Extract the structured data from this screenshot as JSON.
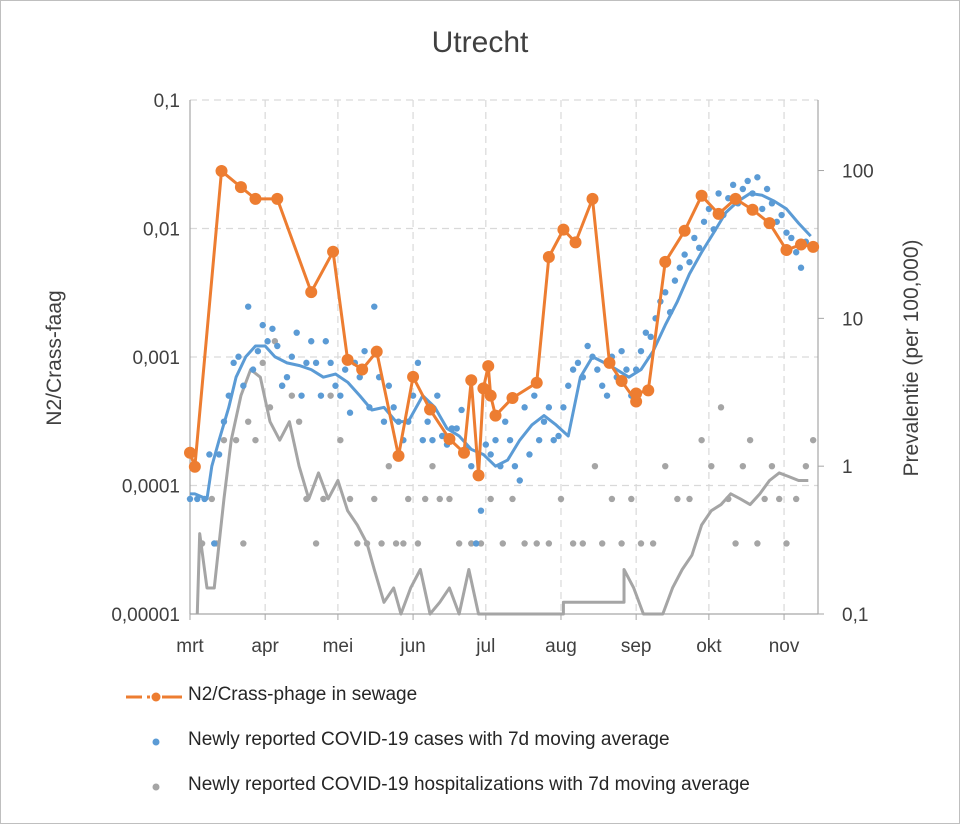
{
  "chart_data": {
    "type": "line",
    "title": "Utrecht",
    "y_left_label": "N2/Crass-faag",
    "y_right_label": "Prevalentie (per 100,000)",
    "y_left_scale": "log",
    "y_right_scale": "log",
    "y_left_range": [
      1e-05,
      0.1
    ],
    "y_right_range": [
      0.1,
      300
    ],
    "y_left_ticks": [
      "0,00001",
      "0,0001",
      "0,001",
      "0,01",
      "0,1"
    ],
    "y_right_ticks": [
      "0,1",
      "1",
      "10",
      "100"
    ],
    "x_range": [
      "2020-03-01",
      "2020-11-15"
    ],
    "x_ticks": [
      {
        "label": "mrt",
        "date": "2020-03-01"
      },
      {
        "label": "apr",
        "date": "2020-04-01"
      },
      {
        "label": "mei",
        "date": "2020-05-01"
      },
      {
        "label": "jun",
        "date": "2020-06-01"
      },
      {
        "label": "jul",
        "date": "2020-07-01"
      },
      {
        "label": "aug",
        "date": "2020-08-01"
      },
      {
        "label": "sep",
        "date": "2020-09-01"
      },
      {
        "label": "okt",
        "date": "2020-10-01"
      },
      {
        "label": "nov",
        "date": "2020-11-01"
      }
    ],
    "grid": true,
    "legend_position": "bottom",
    "colors": {
      "sewage": "#ED7D31",
      "cases": "#5B9BD5",
      "hosp": "#A5A5A5"
    },
    "series": [
      {
        "name": "N2/Crass-phage in sewage",
        "axis": "left",
        "style": "dash-dot-line-markers",
        "x": [
          "2020-03-01",
          "2020-03-03",
          "2020-03-14",
          "2020-03-22",
          "2020-03-28",
          "2020-04-06",
          "2020-04-20",
          "2020-04-29",
          "2020-05-05",
          "2020-05-11",
          "2020-05-17",
          "2020-05-26",
          "2020-06-01",
          "2020-06-08",
          "2020-06-16",
          "2020-06-22",
          "2020-06-25",
          "2020-06-28",
          "2020-06-30",
          "2020-07-02",
          "2020-07-03",
          "2020-07-05",
          "2020-07-12",
          "2020-07-22",
          "2020-07-27",
          "2020-08-02",
          "2020-08-07",
          "2020-08-14",
          "2020-08-21",
          "2020-08-26",
          "2020-09-01",
          "2020-09-01",
          "2020-09-06",
          "2020-09-13",
          "2020-09-21",
          "2020-09-28",
          "2020-10-05",
          "2020-10-12",
          "2020-10-19",
          "2020-10-26",
          "2020-11-02",
          "2020-11-08",
          "2020-11-13"
        ],
        "y": [
          0.00018,
          0.00014,
          0.028,
          0.021,
          0.017,
          0.017,
          0.0032,
          0.0066,
          0.00095,
          0.0008,
          0.0011,
          0.00017,
          0.0007,
          0.00039,
          0.00023,
          0.00018,
          0.00066,
          0.00012,
          0.00057,
          0.00085,
          0.0005,
          0.00035,
          0.00048,
          0.00063,
          0.006,
          0.0098,
          0.0078,
          0.017,
          0.0009,
          0.00065,
          0.00045,
          0.00052,
          0.00055,
          0.0055,
          0.0096,
          0.018,
          0.013,
          0.017,
          0.014,
          0.011,
          0.0068,
          0.0075,
          0.0072
        ]
      },
      {
        "name": "Newly reported COVID-19 cases with 7d moving average",
        "axis": "right",
        "style": "points-and-line",
        "line_x": [
          "2020-03-01",
          "2020-03-03",
          "2020-03-08",
          "2020-03-10",
          "2020-03-13",
          "2020-03-17",
          "2020-03-20",
          "2020-03-24",
          "2020-03-28",
          "2020-04-01",
          "2020-04-05",
          "2020-04-10",
          "2020-04-15",
          "2020-04-20",
          "2020-04-25",
          "2020-04-30",
          "2020-05-05",
          "2020-05-10",
          "2020-05-15",
          "2020-05-20",
          "2020-05-25",
          "2020-05-30",
          "2020-06-05",
          "2020-06-10",
          "2020-06-15",
          "2020-06-20",
          "2020-06-25",
          "2020-06-30",
          "2020-07-05",
          "2020-07-10",
          "2020-07-15",
          "2020-07-20",
          "2020-07-25",
          "2020-07-30",
          "2020-08-04",
          "2020-08-09",
          "2020-08-14",
          "2020-08-19",
          "2020-08-24",
          "2020-08-29",
          "2020-09-03",
          "2020-09-08",
          "2020-09-13",
          "2020-09-18",
          "2020-09-23",
          "2020-09-28",
          "2020-10-03",
          "2020-10-08",
          "2020-10-13",
          "2020-10-18",
          "2020-10-23",
          "2020-10-28",
          "2020-11-02",
          "2020-11-07",
          "2020-11-12"
        ],
        "line_y": [
          0.65,
          0.65,
          0.6,
          1.0,
          1.5,
          2.5,
          4.0,
          5.5,
          6.5,
          6.5,
          5.5,
          5.0,
          4.8,
          4.5,
          4.0,
          4.2,
          3.7,
          3.0,
          2.4,
          2.5,
          2.0,
          2.0,
          3.0,
          2.5,
          1.8,
          1.6,
          1.3,
          1.2,
          1.0,
          1.1,
          1.5,
          1.9,
          2.2,
          1.9,
          1.6,
          4.0,
          5.5,
          5.0,
          4.5,
          4.0,
          4.5,
          6.0,
          9.0,
          13.0,
          20.0,
          28.0,
          38.0,
          52.0,
          62.0,
          70.0,
          68.0,
          62.0,
          55.0,
          44.0,
          36.0
        ],
        "points_x": [
          "2020-03-01",
          "2020-03-02",
          "2020-03-04",
          "2020-03-07",
          "2020-03-09",
          "2020-03-11",
          "2020-03-13",
          "2020-03-15",
          "2020-03-17",
          "2020-03-19",
          "2020-03-21",
          "2020-03-23",
          "2020-03-25",
          "2020-03-27",
          "2020-03-29",
          "2020-03-31",
          "2020-04-02",
          "2020-04-04",
          "2020-04-06",
          "2020-04-08",
          "2020-04-10",
          "2020-04-12",
          "2020-04-14",
          "2020-04-16",
          "2020-04-18",
          "2020-04-20",
          "2020-04-22",
          "2020-04-24",
          "2020-04-26",
          "2020-04-28",
          "2020-04-30",
          "2020-05-02",
          "2020-05-04",
          "2020-05-06",
          "2020-05-08",
          "2020-05-10",
          "2020-05-12",
          "2020-05-14",
          "2020-05-16",
          "2020-05-18",
          "2020-05-20",
          "2020-05-22",
          "2020-05-24",
          "2020-05-26",
          "2020-05-28",
          "2020-05-30",
          "2020-06-01",
          "2020-06-03",
          "2020-06-05",
          "2020-06-07",
          "2020-06-09",
          "2020-06-11",
          "2020-06-13",
          "2020-06-15",
          "2020-06-17",
          "2020-06-19",
          "2020-06-21",
          "2020-06-23",
          "2020-06-25",
          "2020-06-27",
          "2020-06-29",
          "2020-07-01",
          "2020-07-03",
          "2020-07-05",
          "2020-07-07",
          "2020-07-09",
          "2020-07-11",
          "2020-07-13",
          "2020-07-15",
          "2020-07-17",
          "2020-07-19",
          "2020-07-21",
          "2020-07-23",
          "2020-07-25",
          "2020-07-27",
          "2020-07-29",
          "2020-07-31",
          "2020-08-02",
          "2020-08-04",
          "2020-08-06",
          "2020-08-08",
          "2020-08-10",
          "2020-08-12",
          "2020-08-14",
          "2020-08-16",
          "2020-08-18",
          "2020-08-20",
          "2020-08-22",
          "2020-08-24",
          "2020-08-26",
          "2020-08-28",
          "2020-08-30",
          "2020-09-01",
          "2020-09-03",
          "2020-09-05",
          "2020-09-07",
          "2020-09-09",
          "2020-09-11",
          "2020-09-13",
          "2020-09-15",
          "2020-09-17",
          "2020-09-19",
          "2020-09-21",
          "2020-09-23",
          "2020-09-25",
          "2020-09-27",
          "2020-09-29",
          "2020-10-01",
          "2020-10-03",
          "2020-10-05",
          "2020-10-07",
          "2020-10-09",
          "2020-10-11",
          "2020-10-13",
          "2020-10-15",
          "2020-10-17",
          "2020-10-19",
          "2020-10-21",
          "2020-10-23",
          "2020-10-25",
          "2020-10-27",
          "2020-10-29",
          "2020-10-31",
          "2020-11-02",
          "2020-11-04",
          "2020-11-06",
          "2020-11-08",
          "2020-11-10",
          "2020-11-12"
        ],
        "points_y": [
          0.6,
          1.2,
          0.6,
          0.6,
          1.2,
          0.3,
          1.2,
          2.0,
          3.0,
          5.0,
          5.5,
          3.5,
          12.0,
          4.5,
          6.0,
          9.0,
          7.0,
          8.5,
          6.5,
          3.5,
          4.0,
          5.5,
          8.0,
          3.0,
          5.0,
          7.0,
          5.0,
          3.0,
          7.0,
          5.0,
          3.5,
          3.0,
          4.5,
          2.3,
          5.0,
          4.0,
          6.0,
          2.5,
          12.0,
          4.0,
          2.0,
          3.5,
          2.5,
          2.0,
          1.5,
          2.0,
          3.0,
          5.0,
          1.5,
          2.0,
          1.5,
          3.0,
          1.6,
          1.4,
          1.8,
          1.8,
          2.4,
          1.3,
          1.0,
          0.3,
          0.5,
          1.4,
          1.2,
          1.5,
          1.0,
          2.0,
          1.5,
          1.0,
          0.8,
          2.5,
          1.2,
          3.0,
          1.5,
          2.0,
          2.5,
          1.5,
          1.6,
          2.5,
          3.5,
          4.5,
          5.0,
          4.0,
          6.5,
          5.5,
          4.5,
          3.5,
          3.0,
          5.5,
          4.0,
          6.0,
          4.5,
          3.0,
          4.5,
          6.0,
          8.0,
          7.5,
          10.0,
          13.0,
          15.0,
          11.0,
          18.0,
          22.0,
          27.0,
          24.0,
          35.0,
          30.0,
          45.0,
          55.0,
          40.0,
          70.0,
          50.0,
          65.0,
          80.0,
          60.0,
          75.0,
          85.0,
          70.0,
          90.0,
          55.0,
          75.0,
          60.0,
          45.0,
          50.0,
          38.0,
          35.0,
          28.0,
          22.0,
          33.0,
          30.0
        ]
      },
      {
        "name": "Newly reported COVID-19 hospitalizations with 7d moving average",
        "axis": "right",
        "style": "points-and-line",
        "line_x": [
          "2020-03-04",
          "2020-03-05",
          "2020-03-08",
          "2020-03-11",
          "2020-03-15",
          "2020-03-18",
          "2020-03-22",
          "2020-03-26",
          "2020-03-30",
          "2020-04-03",
          "2020-04-07",
          "2020-04-11",
          "2020-04-15",
          "2020-04-19",
          "2020-04-23",
          "2020-04-27",
          "2020-05-01",
          "2020-05-05",
          "2020-05-09",
          "2020-05-13",
          "2020-05-16",
          "2020-05-20",
          "2020-05-24",
          "2020-05-27",
          "2020-05-31",
          "2020-06-04",
          "2020-06-08",
          "2020-06-12",
          "2020-06-16",
          "2020-06-20",
          "2020-06-24",
          "2020-06-28",
          "2020-07-02",
          "2020-08-02",
          "2020-08-02",
          "2020-08-27",
          "2020-08-27",
          "2020-08-31",
          "2020-09-04",
          "2020-09-08",
          "2020-09-12",
          "2020-09-16",
          "2020-09-20",
          "2020-09-24",
          "2020-09-28",
          "2020-10-02",
          "2020-10-06",
          "2020-10-10",
          "2020-10-14",
          "2020-10-18",
          "2020-10-22",
          "2020-10-26",
          "2020-10-30",
          "2020-11-03",
          "2020-11-07",
          "2020-11-11"
        ],
        "line_y": [
          0.1,
          0.35,
          0.15,
          0.15,
          0.6,
          1.5,
          3.0,
          4.5,
          4.0,
          2.0,
          1.5,
          2.0,
          1.0,
          0.6,
          0.9,
          0.6,
          0.8,
          0.5,
          0.4,
          0.3,
          0.2,
          0.12,
          0.15,
          0.1,
          0.15,
          0.2,
          0.1,
          0.12,
          0.15,
          0.1,
          0.2,
          0.1,
          0.1,
          0.1,
          0.12,
          0.12,
          0.2,
          0.15,
          0.1,
          0.1,
          0.1,
          0.15,
          0.2,
          0.25,
          0.4,
          0.5,
          0.55,
          0.65,
          0.6,
          0.55,
          0.65,
          0.8,
          0.9,
          0.85,
          0.8,
          0.8
        ],
        "points_x": [
          "2020-03-06",
          "2020-03-10",
          "2020-03-12",
          "2020-03-15",
          "2020-03-20",
          "2020-03-23",
          "2020-03-25",
          "2020-03-28",
          "2020-03-31",
          "2020-04-03",
          "2020-04-05",
          "2020-04-08",
          "2020-04-12",
          "2020-04-15",
          "2020-04-18",
          "2020-04-22",
          "2020-04-25",
          "2020-04-28",
          "2020-05-02",
          "2020-05-06",
          "2020-05-09",
          "2020-05-13",
          "2020-05-16",
          "2020-05-19",
          "2020-05-22",
          "2020-05-25",
          "2020-05-28",
          "2020-05-30",
          "2020-06-03",
          "2020-06-06",
          "2020-06-09",
          "2020-06-12",
          "2020-06-16",
          "2020-06-20",
          "2020-06-25",
          "2020-06-29",
          "2020-07-03",
          "2020-07-08",
          "2020-07-12",
          "2020-07-17",
          "2020-07-22",
          "2020-07-27",
          "2020-08-01",
          "2020-08-06",
          "2020-08-10",
          "2020-08-15",
          "2020-08-18",
          "2020-08-22",
          "2020-08-26",
          "2020-08-30",
          "2020-09-03",
          "2020-09-08",
          "2020-09-13",
          "2020-09-18",
          "2020-09-23",
          "2020-09-28",
          "2020-10-02",
          "2020-10-06",
          "2020-10-09",
          "2020-10-12",
          "2020-10-15",
          "2020-10-18",
          "2020-10-21",
          "2020-10-24",
          "2020-10-27",
          "2020-10-30",
          "2020-11-02",
          "2020-11-06",
          "2020-11-10",
          "2020-11-13"
        ],
        "points_y": [
          0.3,
          0.6,
          0.3,
          1.5,
          1.5,
          0.3,
          2.0,
          1.5,
          5.0,
          2.5,
          7.0,
          3.5,
          3.0,
          2.0,
          0.6,
          0.3,
          0.6,
          3.0,
          1.5,
          0.6,
          0.3,
          0.3,
          0.6,
          0.3,
          1.0,
          0.3,
          0.3,
          0.6,
          0.3,
          0.6,
          1.0,
          0.6,
          0.6,
          0.3,
          0.3,
          0.3,
          0.6,
          0.3,
          0.6,
          0.3,
          0.3,
          0.3,
          0.6,
          0.3,
          0.3,
          1.0,
          0.3,
          0.6,
          0.3,
          0.6,
          0.3,
          0.3,
          1.0,
          0.6,
          0.6,
          1.5,
          1.0,
          2.5,
          0.6,
          0.3,
          1.0,
          1.5,
          0.3,
          0.6,
          1.0,
          0.6,
          0.3,
          0.6,
          1.0,
          1.5
        ]
      }
    ]
  }
}
